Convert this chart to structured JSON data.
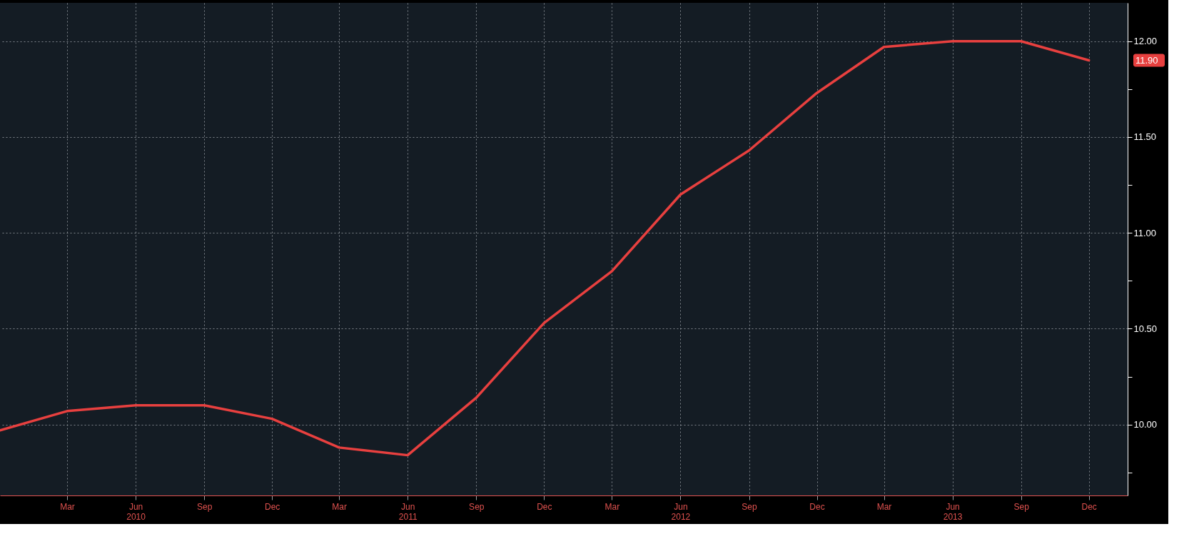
{
  "chart_data": {
    "type": "line",
    "x": [
      "2009-12",
      "2010-03",
      "2010-06",
      "2010-09",
      "2010-12",
      "2011-03",
      "2011-06",
      "2011-09",
      "2011-12",
      "2012-03",
      "2012-06",
      "2012-09",
      "2012-12",
      "2013-03",
      "2013-06",
      "2013-09",
      "2013-12"
    ],
    "series": [
      {
        "color": "#e8403f",
        "values": [
          9.97,
          10.07,
          10.1,
          10.1,
          10.03,
          9.88,
          9.84,
          10.14,
          10.53,
          10.8,
          11.2,
          11.43,
          11.73,
          11.97,
          12.0,
          12.0,
          11.9
        ]
      }
    ],
    "xlim": [
      "2009-12",
      "2014-01-22"
    ],
    "xticks": [
      {
        "value": "2010-03",
        "label": "Mar"
      },
      {
        "value": "2010-06",
        "label": "Jun\n2010"
      },
      {
        "value": "2010-09",
        "label": "Sep"
      },
      {
        "value": "2010-12",
        "label": "Dec"
      },
      {
        "value": "2011-03",
        "label": "Mar"
      },
      {
        "value": "2011-06",
        "label": "Jun\n2011"
      },
      {
        "value": "2011-09",
        "label": "Sep"
      },
      {
        "value": "2011-12",
        "label": "Dec"
      },
      {
        "value": "2012-03",
        "label": "Mar"
      },
      {
        "value": "2012-06",
        "label": "Jun\n2012"
      },
      {
        "value": "2012-09",
        "label": "Sep"
      },
      {
        "value": "2012-12",
        "label": "Dec"
      },
      {
        "value": "2013-03",
        "label": "Mar"
      },
      {
        "value": "2013-06",
        "label": "Jun\n2013"
      },
      {
        "value": "2013-09",
        "label": "Sep"
      },
      {
        "value": "2013-12",
        "label": "Dec"
      }
    ],
    "ylim": [
      9.63,
      12.2
    ],
    "yticks": [
      {
        "value": 9.75,
        "label": null
      },
      {
        "value": 10,
        "label": "10.00"
      },
      {
        "value": 10.25,
        "label": null
      },
      {
        "value": 10.5,
        "label": "10.50"
      },
      {
        "value": 10.75,
        "label": null
      },
      {
        "value": 11,
        "label": "11.00"
      },
      {
        "value": 11.25,
        "label": null
      },
      {
        "value": 11.5,
        "label": "11.50"
      },
      {
        "value": 11.75,
        "label": null
      },
      {
        "value": 12,
        "label": "12.00"
      }
    ],
    "annotations": [
      "11.90"
    ],
    "grid": true,
    "legend": false
  }
}
